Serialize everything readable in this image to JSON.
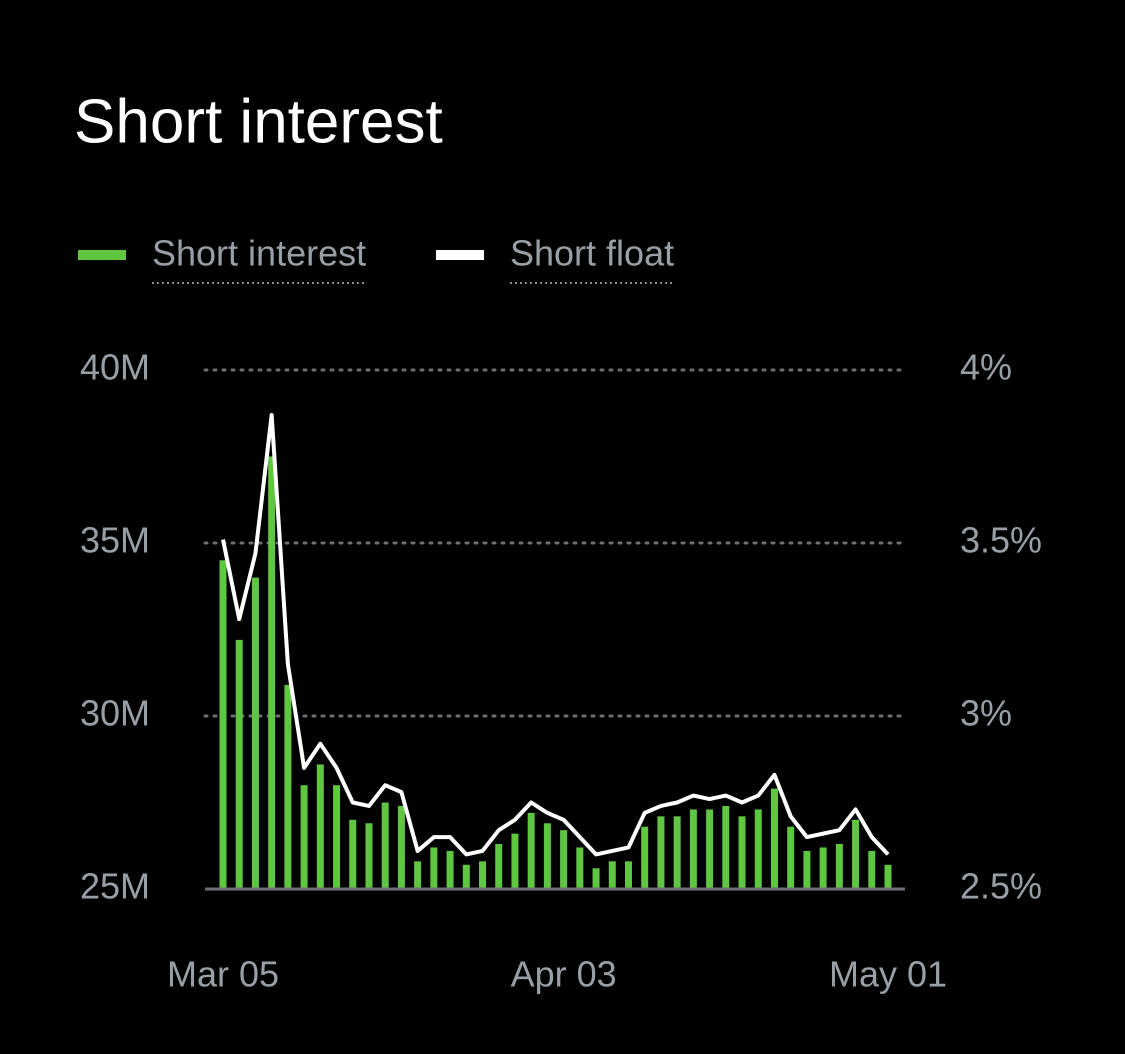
{
  "chart_data": {
    "type": "bar",
    "title": "Short interest",
    "categories": [
      "Mar 05",
      null,
      null,
      null,
      null,
      null,
      null,
      null,
      null,
      null,
      null,
      null,
      null,
      null,
      null,
      null,
      null,
      null,
      null,
      null,
      null,
      "Apr 03",
      null,
      null,
      null,
      null,
      null,
      null,
      null,
      null,
      null,
      null,
      null,
      null,
      null,
      null,
      null,
      null,
      null,
      null,
      null,
      "May 01"
    ],
    "series": [
      {
        "name": "Short interest",
        "color": "#5fc641",
        "type": "bar",
        "values": [
          34.5,
          32.2,
          34.0,
          37.5,
          30.9,
          28.0,
          28.6,
          28.0,
          27.0,
          26.9,
          27.5,
          27.4,
          25.8,
          26.2,
          26.1,
          25.7,
          25.8,
          26.3,
          26.6,
          27.2,
          26.9,
          26.7,
          26.2,
          25.6,
          25.8,
          25.8,
          26.8,
          27.1,
          27.1,
          27.3,
          27.3,
          27.4,
          27.1,
          27.3,
          27.9,
          26.8,
          26.1,
          26.2,
          26.3,
          27.0,
          26.1,
          25.7
        ]
      },
      {
        "name": "Short float",
        "color": "#ffffff",
        "type": "line",
        "axis": "y2",
        "values": [
          3.51,
          3.28,
          3.47,
          3.87,
          3.15,
          2.85,
          2.92,
          2.85,
          2.75,
          2.74,
          2.8,
          2.78,
          2.61,
          2.65,
          2.65,
          2.6,
          2.61,
          2.67,
          2.7,
          2.75,
          2.72,
          2.7,
          2.65,
          2.6,
          2.61,
          2.62,
          2.72,
          2.74,
          2.75,
          2.77,
          2.76,
          2.77,
          2.75,
          2.77,
          2.83,
          2.71,
          2.65,
          2.66,
          2.67,
          2.73,
          2.65,
          2.6
        ]
      }
    ],
    "ylim": [
      25,
      40
    ],
    "yticks": [
      {
        "value": 25,
        "label": "25M"
      },
      {
        "value": 30,
        "label": "30M"
      },
      {
        "value": 35,
        "label": "35M"
      },
      {
        "value": 40,
        "label": "40M"
      }
    ],
    "y2lim": [
      2.5,
      4
    ],
    "y2ticks": [
      {
        "value": 2.5,
        "label": "2.5%"
      },
      {
        "value": 3,
        "label": "3%"
      },
      {
        "value": 3.5,
        "label": "3.5%"
      },
      {
        "value": 4,
        "label": "4%"
      }
    ],
    "grid": true
  }
}
